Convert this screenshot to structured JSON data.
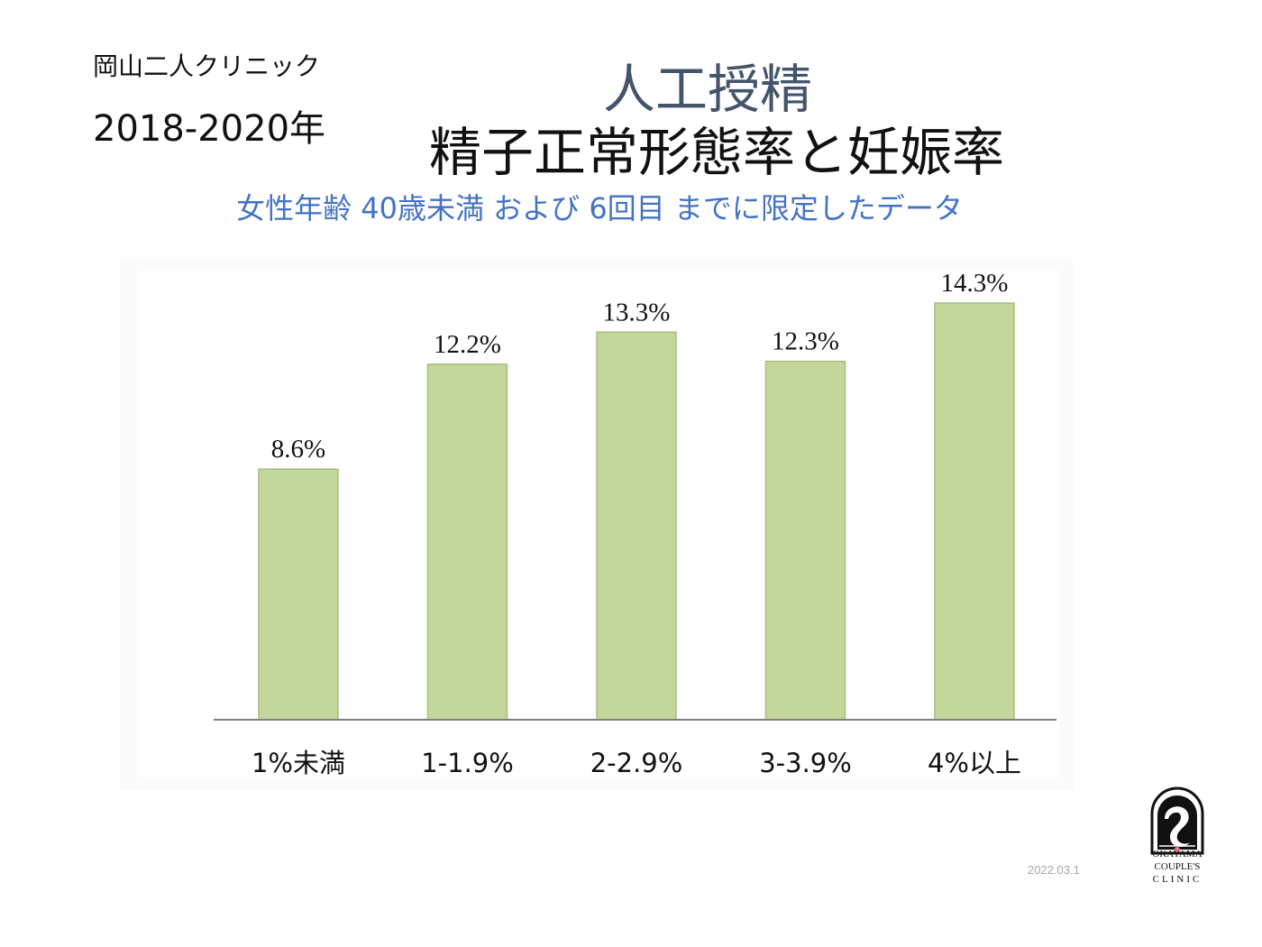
{
  "header": {
    "clinic_name": "岡山二人クリニック",
    "period": "2018-2020年",
    "title_line1": "人工授精",
    "title_line2": "精子正常形態率と妊娠率",
    "subtitle": "女性年齢 40歳未満 および 6回目 までに限定したデータ"
  },
  "chart_data": {
    "type": "bar",
    "categories": [
      "1%未満",
      "1-1.9%",
      "2-2.9%",
      "3-3.9%",
      "4%以上"
    ],
    "values": [
      8.6,
      12.2,
      13.3,
      12.3,
      14.3
    ],
    "value_labels": [
      "8.6%",
      "12.2%",
      "13.3%",
      "12.3%",
      "14.3%"
    ],
    "bar_color": "#c4d79b",
    "bar_border": "#a9bd82",
    "axis_color": "#7f7f7f",
    "ylim": [
      0,
      14.3
    ],
    "grid": false,
    "legend": "none",
    "title": "",
    "xlabel": "",
    "ylabel": ""
  },
  "footer": {
    "date": "2022.03.1",
    "logo_line1": "OKAYAMA",
    "logo_line2": "COUPLE'S",
    "logo_line3": "CLINIC"
  }
}
